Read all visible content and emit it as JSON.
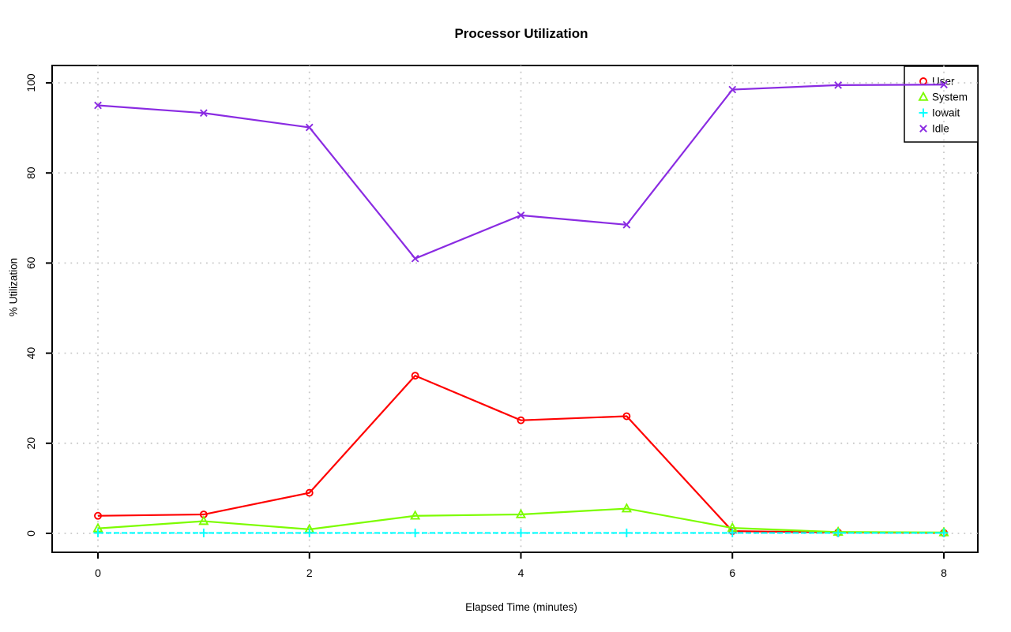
{
  "chart_data": {
    "type": "line",
    "title": "Processor Utilization",
    "xlabel": "Elapsed Time (minutes)",
    "ylabel": "% Utilization",
    "x": [
      0,
      1,
      2,
      3,
      4,
      5,
      6,
      7,
      8
    ],
    "xticks": [
      "0",
      "2",
      "4",
      "6",
      "8"
    ],
    "xtick_values": [
      0,
      2,
      4,
      6,
      8
    ],
    "yticks": [
      "0",
      "20",
      "40",
      "60",
      "80",
      "100"
    ],
    "ytick_values": [
      0,
      20,
      40,
      60,
      80,
      100
    ],
    "xlim": [
      0,
      8
    ],
    "ylim": [
      0,
      100
    ],
    "grid": "dotted",
    "grid_color": "#c9c9c9",
    "legend_position": "topright",
    "series": [
      {
        "name": "User",
        "color": "#ff0000",
        "marker": "circle",
        "line": "solid",
        "values": [
          3.9,
          4.2,
          9.0,
          35.0,
          25.1,
          26.0,
          0.5,
          0.2,
          0.1
        ]
      },
      {
        "name": "System",
        "color": "#7cfc00",
        "marker": "triangle",
        "line": "solid",
        "values": [
          1.1,
          2.7,
          0.9,
          3.9,
          4.2,
          5.5,
          1.2,
          0.3,
          0.2
        ]
      },
      {
        "name": "Iowait",
        "color": "#00ffff",
        "marker": "plus",
        "line": "dashed",
        "values": [
          0.1,
          0.1,
          0.1,
          0.1,
          0.1,
          0.1,
          0.1,
          0.1,
          0.1
        ]
      },
      {
        "name": "Idle",
        "color": "#8a2be2",
        "marker": "x",
        "line": "solid",
        "values": [
          95.0,
          93.3,
          90.1,
          61.0,
          70.6,
          68.5,
          98.5,
          99.5,
          99.6
        ]
      }
    ]
  }
}
